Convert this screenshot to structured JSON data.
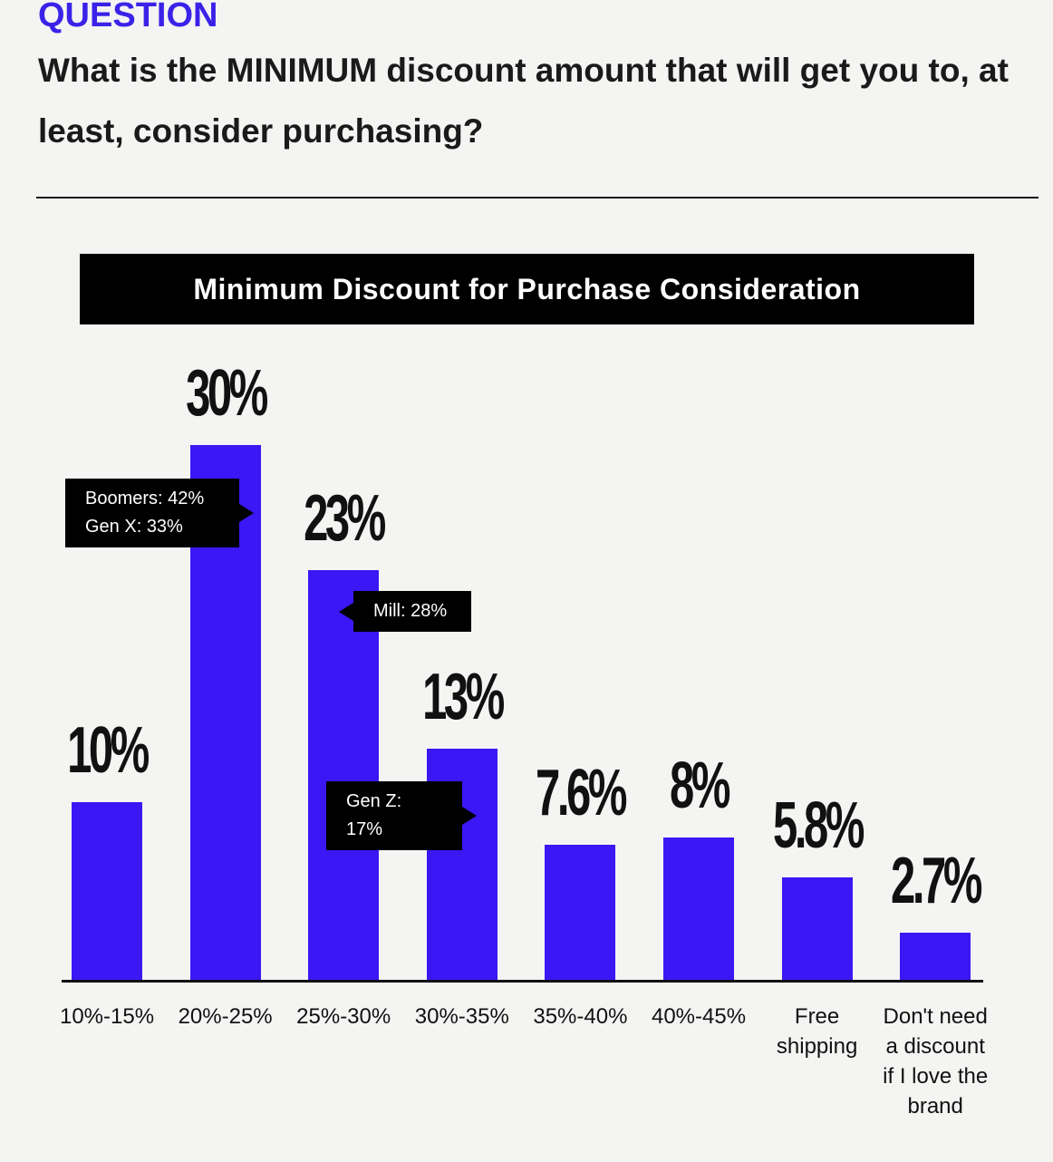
{
  "header": {
    "label": "QUESTION",
    "question": "What is the MINIMUM discount amount that will get you to, at least, consider purchasing?"
  },
  "chart_data": {
    "type": "bar",
    "title": "Minimum Discount for Purchase Consideration",
    "categories": [
      "10%-15%",
      "20%-25%",
      "25%-30%",
      "30%-35%",
      "35%-40%",
      "40%-45%",
      "Free shipping",
      "Don't need a discount if I love the brand"
    ],
    "values": [
      10,
      30,
      23,
      13,
      7.6,
      8,
      5.8,
      2.7
    ],
    "value_labels": [
      "10%",
      "30%",
      "23%",
      "13%",
      "7.6%",
      "8%",
      "5.8%",
      "2.7%"
    ],
    "color": "#3b17f5",
    "annotations": [
      {
        "lines": [
          "Boomers: 42%",
          "Gen X: 33%"
        ]
      },
      {
        "lines": [
          "Mill: 28%"
        ]
      },
      {
        "lines": [
          "Gen Z: 17%"
        ]
      }
    ]
  }
}
